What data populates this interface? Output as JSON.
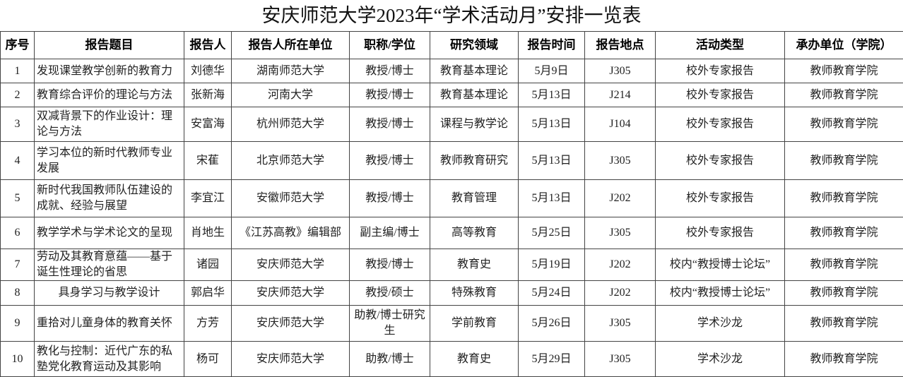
{
  "title": "安庆师范大学2023年“学术活动月”安排一览表",
  "headers": [
    "序号",
    "报告题目",
    "报告人",
    "报告人所在单位",
    "职称/学位",
    "研究领域",
    "报告时间",
    "报告地点",
    "活动类型",
    "承办单位（学院）"
  ],
  "rows": [
    [
      "1",
      "发现课堂教学创新的教育力",
      "刘德华",
      "湖南师范大学",
      "教授/博士",
      "教育基本理论",
      "5月9日",
      "J305",
      "校外专家报告",
      "教师教育学院"
    ],
    [
      "2",
      "教育综合评价的理论与方法",
      "张新海",
      "河南大学",
      "教授/博士",
      "教育基本理论",
      "5月13日",
      "J214",
      "校外专家报告",
      "教师教育学院"
    ],
    [
      "3",
      "双减背景下的作业设计：理论与方法",
      "安富海",
      "杭州师范大学",
      "教授/博士",
      "课程与教学论",
      "5月13日",
      "J104",
      "校外专家报告",
      "教师教育学院"
    ],
    [
      "4",
      "学习本位的新时代教师专业发展",
      "宋萑",
      "北京师范大学",
      "教授/博士",
      "教师教育研究",
      "5月13日",
      "J305",
      "校外专家报告",
      "教师教育学院"
    ],
    [
      "5",
      "新时代我国教师队伍建设的成就、经验与展望",
      "李宜江",
      "安徽师范大学",
      "教授/博士",
      "教育管理",
      "5月13日",
      "J202",
      "校外专家报告",
      "教师教育学院"
    ],
    [
      "6",
      "教学学术与学术论文的呈现",
      "肖地生",
      "《江苏高教》编辑部",
      "副主编/博士",
      "高等教育",
      "5月25日",
      "J305",
      "校外专家报告",
      "教师教育学院"
    ],
    [
      "7",
      "劳动及其教育意蕴——基于诞生性理论的省思",
      "诸园",
      "安庆师范大学",
      "教授/博士",
      "教育史",
      "5月19日",
      "J202",
      "校内“教授博士论坛”",
      "教师教育学院"
    ],
    [
      "8",
      "具身学习与教学设计",
      "郭启华",
      "安庆师范大学",
      "教授/硕士",
      "特殊教育",
      "5月24日",
      "J202",
      "校内“教授博士论坛”",
      "教师教育学院"
    ],
    [
      "9",
      "重拾对儿童身体的教育关怀",
      "方芳",
      "安庆师范大学",
      "助教/博士研究生",
      "学前教育",
      "5月26日",
      "J305",
      "学术沙龙",
      "教师教育学院"
    ],
    [
      "10",
      "教化与控制：近代广东的私塾党化教育运动及其影响",
      "杨可",
      "安庆师范大学",
      "助教/博士",
      "教育史",
      "5月29日",
      "J305",
      "学术沙龙",
      "教师教育学院"
    ]
  ]
}
